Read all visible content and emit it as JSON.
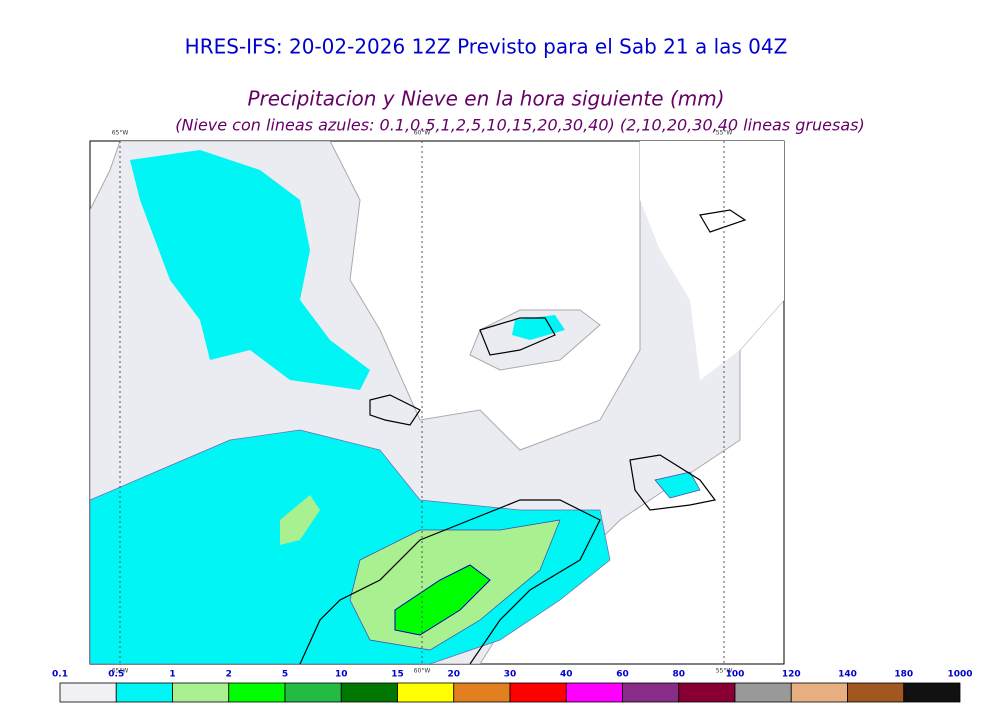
{
  "header": {
    "title": "HRES-IFS: 20-02-2026 12Z Previsto para el Sab 21 a las 04Z",
    "subtitle": "Precipitacion y Nieve en la hora siguiente (mm)",
    "note": "(Nieve con lineas azules: 0.1,0.5,1,2,5,10,15,20,30,40)  (2,10,20,30,40 lineas gruesas)"
  },
  "map": {
    "meridians": [
      "65°W",
      "60°W",
      "55°W"
    ]
  },
  "colorbar": {
    "levels": [
      0.1,
      0.5,
      1,
      2,
      5,
      10,
      15,
      20,
      30,
      40,
      60,
      80,
      100,
      120,
      140,
      180,
      1000
    ],
    "colors": [
      "#f0f0f5",
      "#00f5f5",
      "#a8f090",
      "#00ff00",
      "#22bb44",
      "#007700",
      "#ffff00",
      "#e08020",
      "#ff0000",
      "#ff00ff",
      "#882c88",
      "#880033",
      "#999999",
      "#e8b080",
      "#a05820",
      "#111111"
    ]
  }
}
